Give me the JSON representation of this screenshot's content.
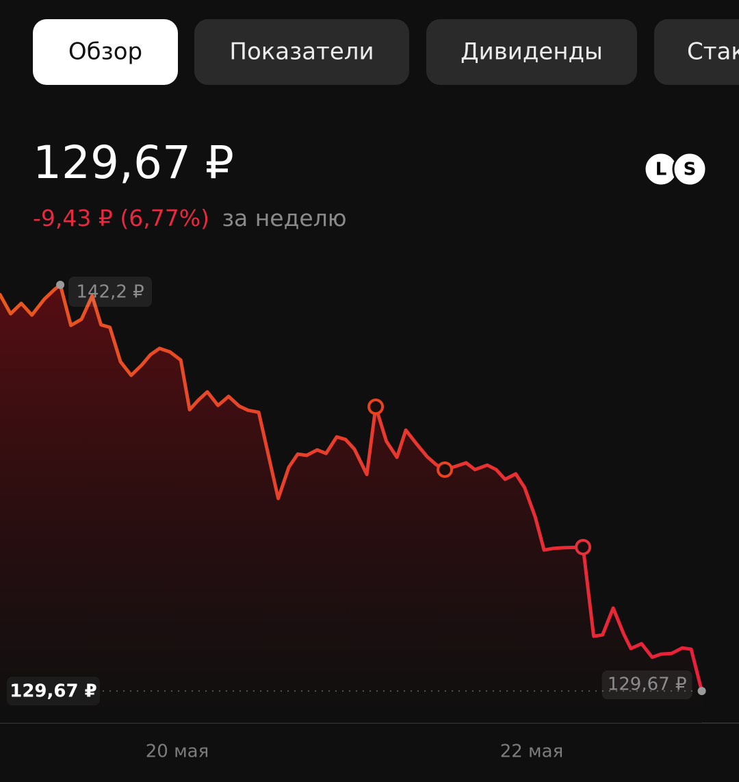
{
  "tabs": [
    "Обзор",
    "Показатели",
    "Дивиденды",
    "Стак"
  ],
  "header": {
    "price": "129,67 ₽",
    "change": "-9,43 ₽ (6,77%)",
    "period": "за неделю",
    "badges": [
      "L",
      "S"
    ]
  },
  "chart_data": {
    "type": "line",
    "color_start": "#e8581f",
    "color_end": "#e8203a",
    "x": [
      19.0,
      19.06,
      19.12,
      19.18,
      19.25,
      19.31,
      19.34,
      19.4,
      19.46,
      19.52,
      19.57,
      19.62,
      19.68,
      19.74,
      19.8,
      19.85,
      19.9,
      19.96,
      20.02,
      20.07,
      20.12,
      20.17,
      20.23,
      20.29,
      20.35,
      20.4,
      20.46,
      20.57,
      20.63,
      20.68,
      20.73,
      20.79,
      20.84,
      20.9,
      20.95,
      21.0,
      21.07,
      21.12,
      21.18,
      21.24,
      21.29,
      21.35,
      21.41,
      21.46,
      21.51,
      21.57,
      21.63,
      21.68,
      21.75,
      21.8,
      21.85,
      21.91,
      21.96,
      22.02,
      22.07,
      22.12,
      22.18,
      22.29,
      22.35,
      22.4,
      22.46,
      22.52,
      22.56,
      22.62,
      22.68,
      22.73,
      22.79,
      22.85,
      22.9,
      22.96
    ],
    "values": [
      141.9,
      141.31,
      141.63,
      141.27,
      141.76,
      142.07,
      142.2,
      140.95,
      141.14,
      141.86,
      140.97,
      140.89,
      139.83,
      139.41,
      139.73,
      140.05,
      140.24,
      140.13,
      139.88,
      138.35,
      138.65,
      138.9,
      138.48,
      138.76,
      138.46,
      138.33,
      138.27,
      135.61,
      136.58,
      136.98,
      136.94,
      137.11,
      137.0,
      137.51,
      137.43,
      137.13,
      136.35,
      138.44,
      137.38,
      136.88,
      137.72,
      137.3,
      136.9,
      136.66,
      136.5,
      136.6,
      136.71,
      136.5,
      136.64,
      136.5,
      136.2,
      136.37,
      135.95,
      135.04,
      134.02,
      134.07,
      134.09,
      134.11,
      131.36,
      131.4,
      132.23,
      131.42,
      130.98,
      131.13,
      130.71,
      130.81,
      130.83,
      131.0,
      130.96,
      129.67
    ],
    "markers": {
      "x": [
        21.12,
        21.51,
        22.29
      ],
      "values": [
        138.44,
        136.5,
        134.11
      ]
    },
    "max_label": {
      "x": 19.34,
      "value": 142.2,
      "label": "142,2 ₽"
    },
    "last_label": {
      "x": 22.96,
      "value": 129.67,
      "label": "129,67 ₽"
    },
    "reference_line": {
      "value": 129.67,
      "label": "129,67 ₽"
    },
    "xlim": [
      19.0,
      23.17
    ],
    "ylim": [
      128.68,
      142.75
    ],
    "xticks": [
      {
        "value": 20,
        "label": "20 мая"
      },
      {
        "value": 22,
        "label": "22 мая"
      }
    ]
  }
}
